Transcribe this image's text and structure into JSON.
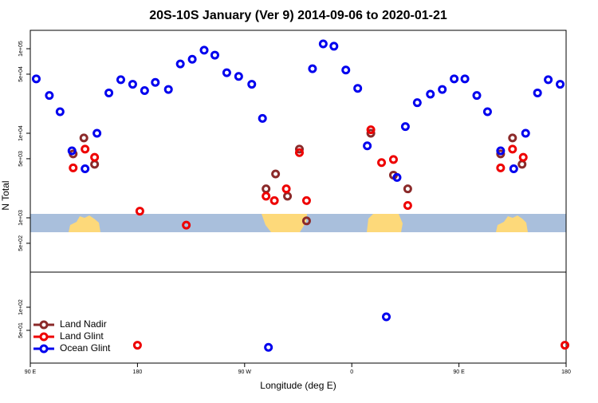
{
  "chart_data": [
    {
      "type": "scatter",
      "title": "20S-10S January (Ver 9)   2014-09-06 to 2020-01-21",
      "ylabel": "N Total",
      "ylog": true,
      "xlim": [
        90,
        540
      ],
      "ylim": [
        233,
        165000
      ],
      "yticks": [
        {
          "value": 500,
          "label": "5e+02"
        },
        {
          "value": 1000,
          "label": "1e+03"
        },
        {
          "value": 5000,
          "label": "5e+03"
        },
        {
          "value": 10000,
          "label": "1e+04"
        },
        {
          "value": 50000,
          "label": "5e+04"
        },
        {
          "value": 100000,
          "label": "1e+05"
        }
      ],
      "series": [
        {
          "color": "#8b2a2a",
          "x": [
            126,
            135,
            144,
            288,
            296,
            306,
            316,
            322,
            376,
            395,
            407,
            485,
            495,
            503
          ],
          "values": [
            5700,
            8800,
            4300,
            2200,
            3300,
            1800,
            6500,
            920,
            10000,
            3200,
            2200,
            5700,
            8800,
            4300
          ]
        },
        {
          "color": "#ee0000",
          "x": [
            126,
            136,
            144,
            182,
            221,
            288,
            295,
            305,
            316,
            322,
            376,
            385,
            395,
            407,
            485,
            495,
            504
          ],
          "values": [
            3900,
            6500,
            5200,
            1200,
            820,
            1800,
            1600,
            2200,
            5900,
            1600,
            11000,
            4500,
            4900,
            1400,
            3900,
            6500,
            5200
          ]
        },
        {
          "color": "#0000ee",
          "x": [
            95,
            106,
            115,
            125,
            136,
            146,
            156,
            166,
            176,
            186,
            195,
            206,
            216,
            226,
            236,
            245,
            255,
            265,
            276,
            285,
            327,
            336,
            345,
            355,
            365,
            373,
            398,
            405,
            415,
            426,
            436,
            446,
            455,
            465,
            474,
            485,
            496,
            506,
            516,
            525,
            535
          ],
          "values": [
            44000,
            28000,
            18000,
            6200,
            3800,
            10000,
            30000,
            43000,
            38000,
            32000,
            40000,
            33000,
            66000,
            75000,
            96000,
            84000,
            52000,
            47000,
            38000,
            15000,
            58000,
            114000,
            107000,
            56000,
            34000,
            7100,
            3000,
            12000,
            23000,
            29000,
            33000,
            44000,
            44000,
            28000,
            18000,
            6200,
            3800,
            10000,
            30000,
            43000,
            38000
          ]
        }
      ]
    },
    {
      "type": "scatter",
      "xlabel": "Longitude (deg E)",
      "ylog": true,
      "xlim": [
        90,
        540
      ],
      "ylim": [
        18.7,
        287
      ],
      "xticks": [
        {
          "value": 90,
          "label": "90 E"
        },
        180,
        {
          "value": 270,
          "label": "90 W"
        },
        {
          "value": 360,
          "label": "0"
        },
        {
          "value": 450,
          "label": "90 E"
        },
        {
          "value": 540,
          "label": "180"
        }
      ],
      "yticks": [
        {
          "value": 50,
          "label": "5e+01"
        },
        {
          "value": 100,
          "label": "1e+02"
        }
      ],
      "legend": "lower left",
      "series": [
        {
          "name": "Land Nadir",
          "color": "#8b2a2a",
          "x": [],
          "values": []
        },
        {
          "name": "Land Glint",
          "color": "#ee0000",
          "x": [
            180,
            539
          ],
          "values": [
            32,
            32
          ]
        },
        {
          "name": "Ocean Glint",
          "color": "#0000ee",
          "x": [
            290,
            389
          ],
          "values": [
            30,
            75
          ]
        }
      ]
    }
  ]
}
